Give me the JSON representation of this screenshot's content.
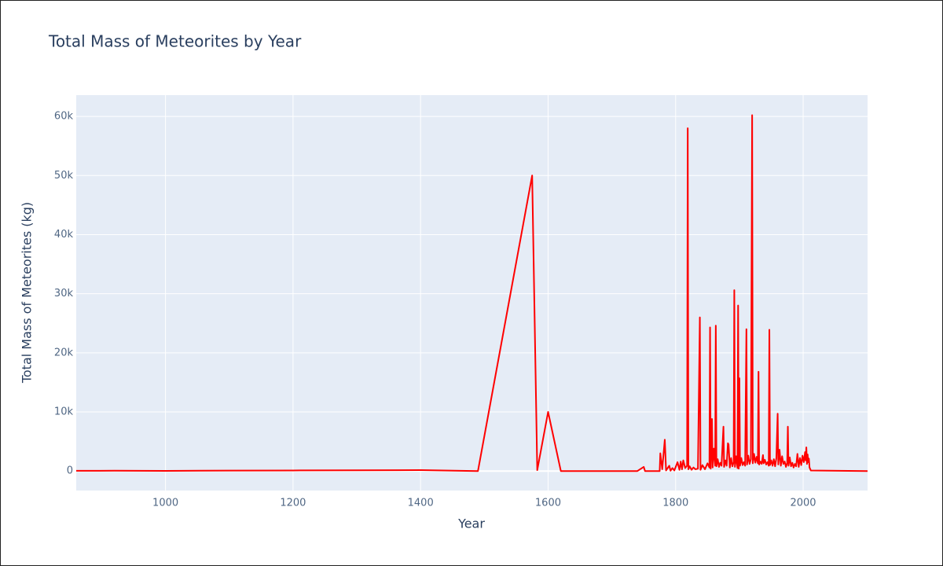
{
  "chart_data": {
    "type": "line",
    "title": "Total Mass of Meteorites by Year",
    "x_label": "Year",
    "y_label": "Total Mass of Meteorites (kg)",
    "xlim": [
      860,
      2101
    ],
    "ylim": [
      -3300,
      63600
    ],
    "xticks": [
      1000,
      1200,
      1400,
      1600,
      1800,
      2000
    ],
    "yticks": [
      {
        "value": 0,
        "label": "0"
      },
      {
        "value": 10000,
        "label": "10k"
      },
      {
        "value": 20000,
        "label": "20k"
      },
      {
        "value": 30000,
        "label": "30k"
      },
      {
        "value": 40000,
        "label": "40k"
      },
      {
        "value": 50000,
        "label": "50k"
      },
      {
        "value": 60000,
        "label": "60k"
      }
    ],
    "grid": true,
    "x": [
      860,
      920,
      1000,
      1100,
      1200,
      1300,
      1400,
      1490,
      1575,
      1583,
      1600,
      1620,
      1740,
      1750,
      1752,
      1775,
      1776,
      1779,
      1783,
      1785,
      1790,
      1792,
      1795,
      1798,
      1803,
      1806,
      1808,
      1810,
      1812,
      1815,
      1818,
      1819,
      1820,
      1822,
      1825,
      1828,
      1831,
      1835,
      1838,
      1839,
      1842,
      1846,
      1850,
      1853,
      1854,
      1855,
      1857,
      1858,
      1860,
      1862,
      1863,
      1864,
      1866,
      1868,
      1870,
      1872,
      1875,
      1876,
      1878,
      1880,
      1882,
      1883,
      1885,
      1887,
      1889,
      1891,
      1892,
      1893,
      1895,
      1897,
      1898,
      1899,
      1900,
      1901,
      1903,
      1905,
      1907,
      1909,
      1911,
      1912,
      1914,
      1916,
      1918,
      1920,
      1921,
      1923,
      1925,
      1927,
      1929,
      1930,
      1931,
      1933,
      1935,
      1937,
      1938,
      1940,
      1942,
      1944,
      1946,
      1947,
      1948,
      1950,
      1952,
      1954,
      1956,
      1958,
      1960,
      1961,
      1963,
      1965,
      1967,
      1969,
      1971,
      1973,
      1975,
      1976,
      1977,
      1979,
      1981,
      1983,
      1985,
      1987,
      1989,
      1991,
      1993,
      1995,
      1997,
      1999,
      2001,
      2003,
      2004,
      2005,
      2006,
      2007,
      2008,
      2009,
      2010,
      2012,
      2101
    ],
    "series": [
      {
        "name": "Total Mass",
        "color": "#ff0000",
        "values": [
          40,
          50,
          30,
          80,
          100,
          120,
          150,
          0,
          50000,
          150,
          10000,
          0,
          0,
          700,
          0,
          0,
          3000,
          300,
          5300,
          100,
          900,
          50,
          500,
          100,
          1500,
          200,
          1600,
          300,
          1800,
          500,
          900,
          58000,
          300,
          800,
          200,
          600,
          300,
          400,
          26000,
          200,
          1000,
          300,
          1300,
          600,
          24300,
          400,
          8800,
          600,
          3800,
          900,
          24600,
          800,
          2000,
          700,
          1400,
          900,
          7500,
          700,
          1800,
          900,
          4700,
          4500,
          600,
          2200,
          800,
          1500,
          30600,
          700,
          2500,
          500,
          28000,
          400,
          15700,
          900,
          2200,
          1000,
          1500,
          900,
          24000,
          1100,
          2600,
          1200,
          2000,
          60200,
          1300,
          2900,
          1400,
          2400,
          1300,
          16800,
          1100,
          1600,
          1200,
          2700,
          1300,
          1900,
          1100,
          1500,
          900,
          23900,
          1000,
          1800,
          900,
          2000,
          800,
          2200,
          9700,
          1100,
          3600,
          900,
          2500,
          1200,
          1600,
          700,
          1400,
          7500,
          900,
          2300,
          800,
          1400,
          600,
          1200,
          800,
          2900,
          700,
          2200,
          1000,
          2600,
          1500,
          3200,
          1800,
          4000,
          1200,
          2800,
          1500,
          2100,
          600,
          100,
          0
        ]
      }
    ]
  }
}
